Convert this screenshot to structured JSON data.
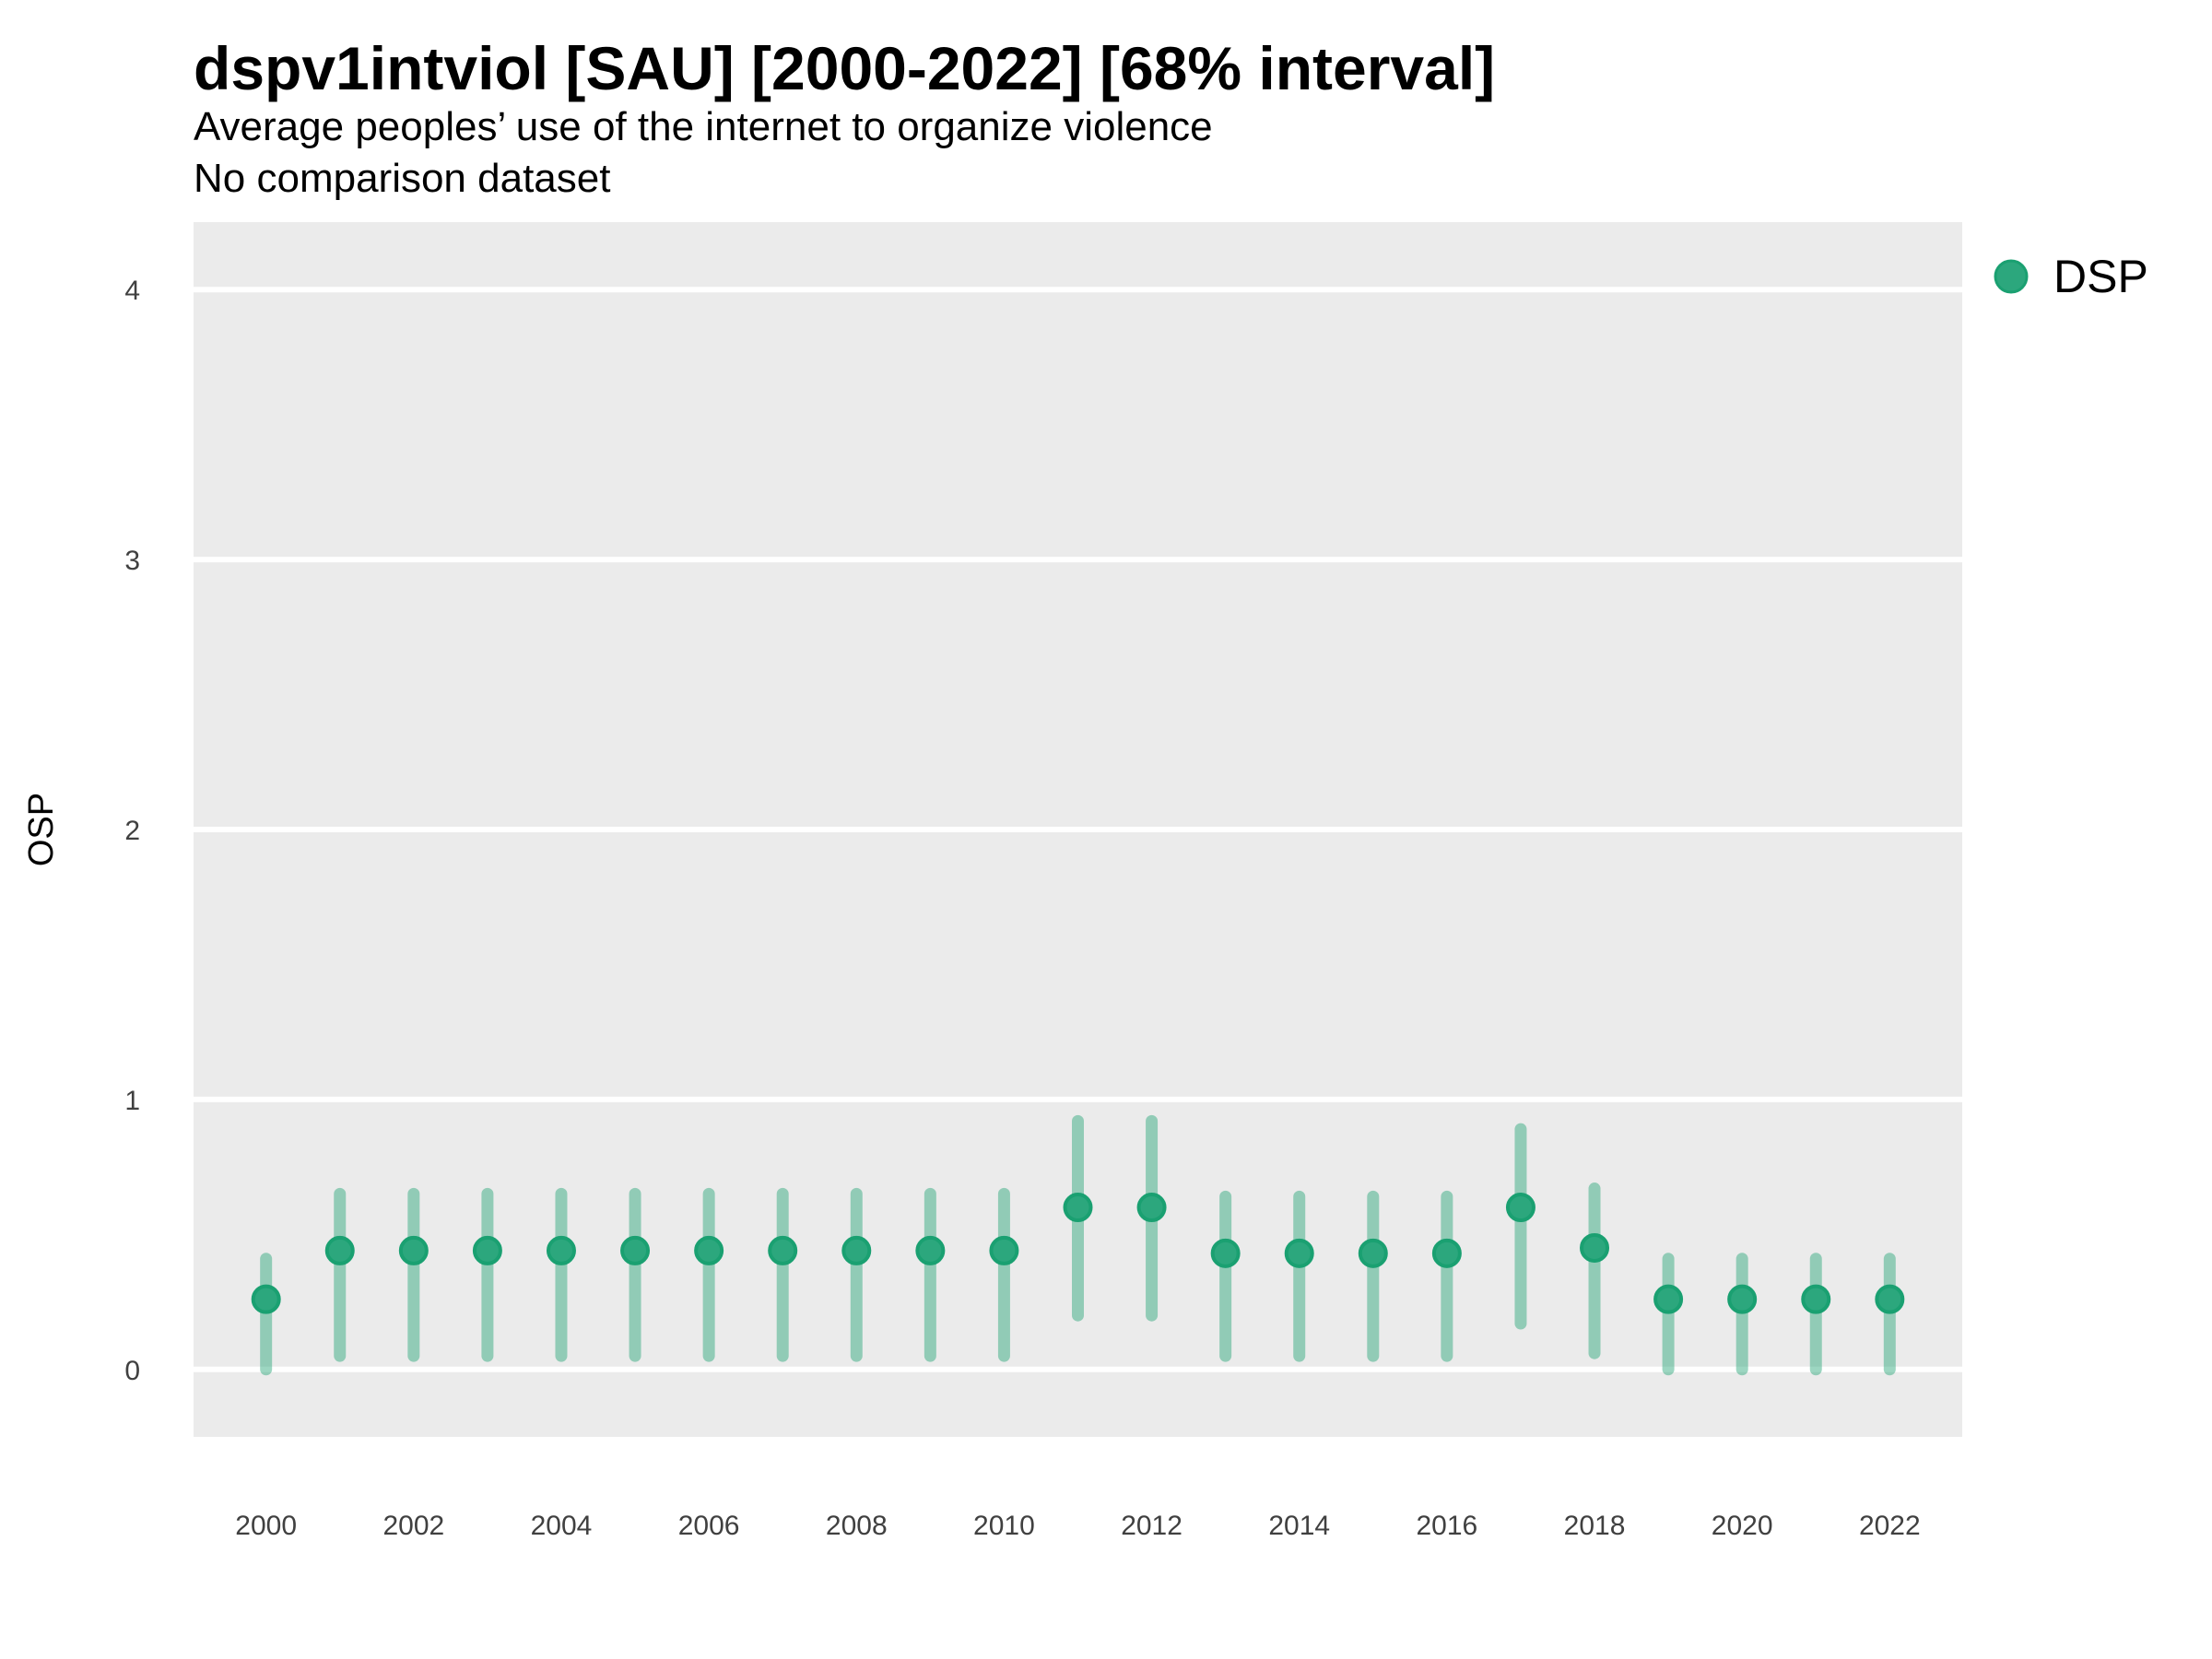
{
  "chart_data": {
    "type": "pointrange-scatter",
    "title": "dspv1intviol [SAU] [2000-2022] [68% interval]",
    "subtitle": "Average peoples’ use of the internet to organize violence",
    "comparison_note": "No comparison dataset",
    "xlabel": "",
    "ylabel": "OSP",
    "interval_level": "68%",
    "x_range": [
      2000,
      2022
    ],
    "ylim": [
      -0.25,
      4.25
    ],
    "yticks": [
      0,
      1,
      2,
      3,
      4
    ],
    "xticks": [
      2000,
      2002,
      2004,
      2006,
      2008,
      2010,
      2012,
      2014,
      2016,
      2018,
      2020,
      2022
    ],
    "grid": "horizontal-major-only",
    "legend": {
      "position": "right",
      "entries": [
        {
          "label": "DSP",
          "color": "#2ca77d"
        }
      ]
    },
    "colors": {
      "panel_bg": "#ebebeb",
      "gridline": "#ffffff",
      "point_fill": "#2ca77d",
      "point_stroke": "#1aa071",
      "interval_bar": "rgba(44,167,124,0.47)",
      "axis_text": "#404040"
    },
    "series": [
      {
        "name": "DSP",
        "points": [
          {
            "x": 2000,
            "y": 0.26,
            "lo": 0.0,
            "hi": 0.41
          },
          {
            "x": 2001,
            "y": 0.44,
            "lo": 0.05,
            "hi": 0.65
          },
          {
            "x": 2002,
            "y": 0.44,
            "lo": 0.05,
            "hi": 0.65
          },
          {
            "x": 2003,
            "y": 0.44,
            "lo": 0.05,
            "hi": 0.65
          },
          {
            "x": 2004,
            "y": 0.44,
            "lo": 0.05,
            "hi": 0.65
          },
          {
            "x": 2005,
            "y": 0.44,
            "lo": 0.05,
            "hi": 0.65
          },
          {
            "x": 2006,
            "y": 0.44,
            "lo": 0.05,
            "hi": 0.65
          },
          {
            "x": 2007,
            "y": 0.44,
            "lo": 0.05,
            "hi": 0.65
          },
          {
            "x": 2008,
            "y": 0.44,
            "lo": 0.05,
            "hi": 0.65
          },
          {
            "x": 2009,
            "y": 0.44,
            "lo": 0.05,
            "hi": 0.65
          },
          {
            "x": 2010,
            "y": 0.44,
            "lo": 0.05,
            "hi": 0.65
          },
          {
            "x": 2011,
            "y": 0.6,
            "lo": 0.2,
            "hi": 0.92
          },
          {
            "x": 2012,
            "y": 0.6,
            "lo": 0.2,
            "hi": 0.92
          },
          {
            "x": 2013,
            "y": 0.43,
            "lo": 0.05,
            "hi": 0.64
          },
          {
            "x": 2014,
            "y": 0.43,
            "lo": 0.05,
            "hi": 0.64
          },
          {
            "x": 2015,
            "y": 0.43,
            "lo": 0.05,
            "hi": 0.64
          },
          {
            "x": 2016,
            "y": 0.43,
            "lo": 0.05,
            "hi": 0.64
          },
          {
            "x": 2017,
            "y": 0.6,
            "lo": 0.17,
            "hi": 0.89
          },
          {
            "x": 2018,
            "y": 0.45,
            "lo": 0.06,
            "hi": 0.67
          },
          {
            "x": 2019,
            "y": 0.26,
            "lo": 0.0,
            "hi": 0.41
          },
          {
            "x": 2020,
            "y": 0.26,
            "lo": 0.0,
            "hi": 0.41
          },
          {
            "x": 2021,
            "y": 0.26,
            "lo": 0.0,
            "hi": 0.41
          },
          {
            "x": 2022,
            "y": 0.26,
            "lo": 0.0,
            "hi": 0.41
          }
        ]
      }
    ]
  }
}
